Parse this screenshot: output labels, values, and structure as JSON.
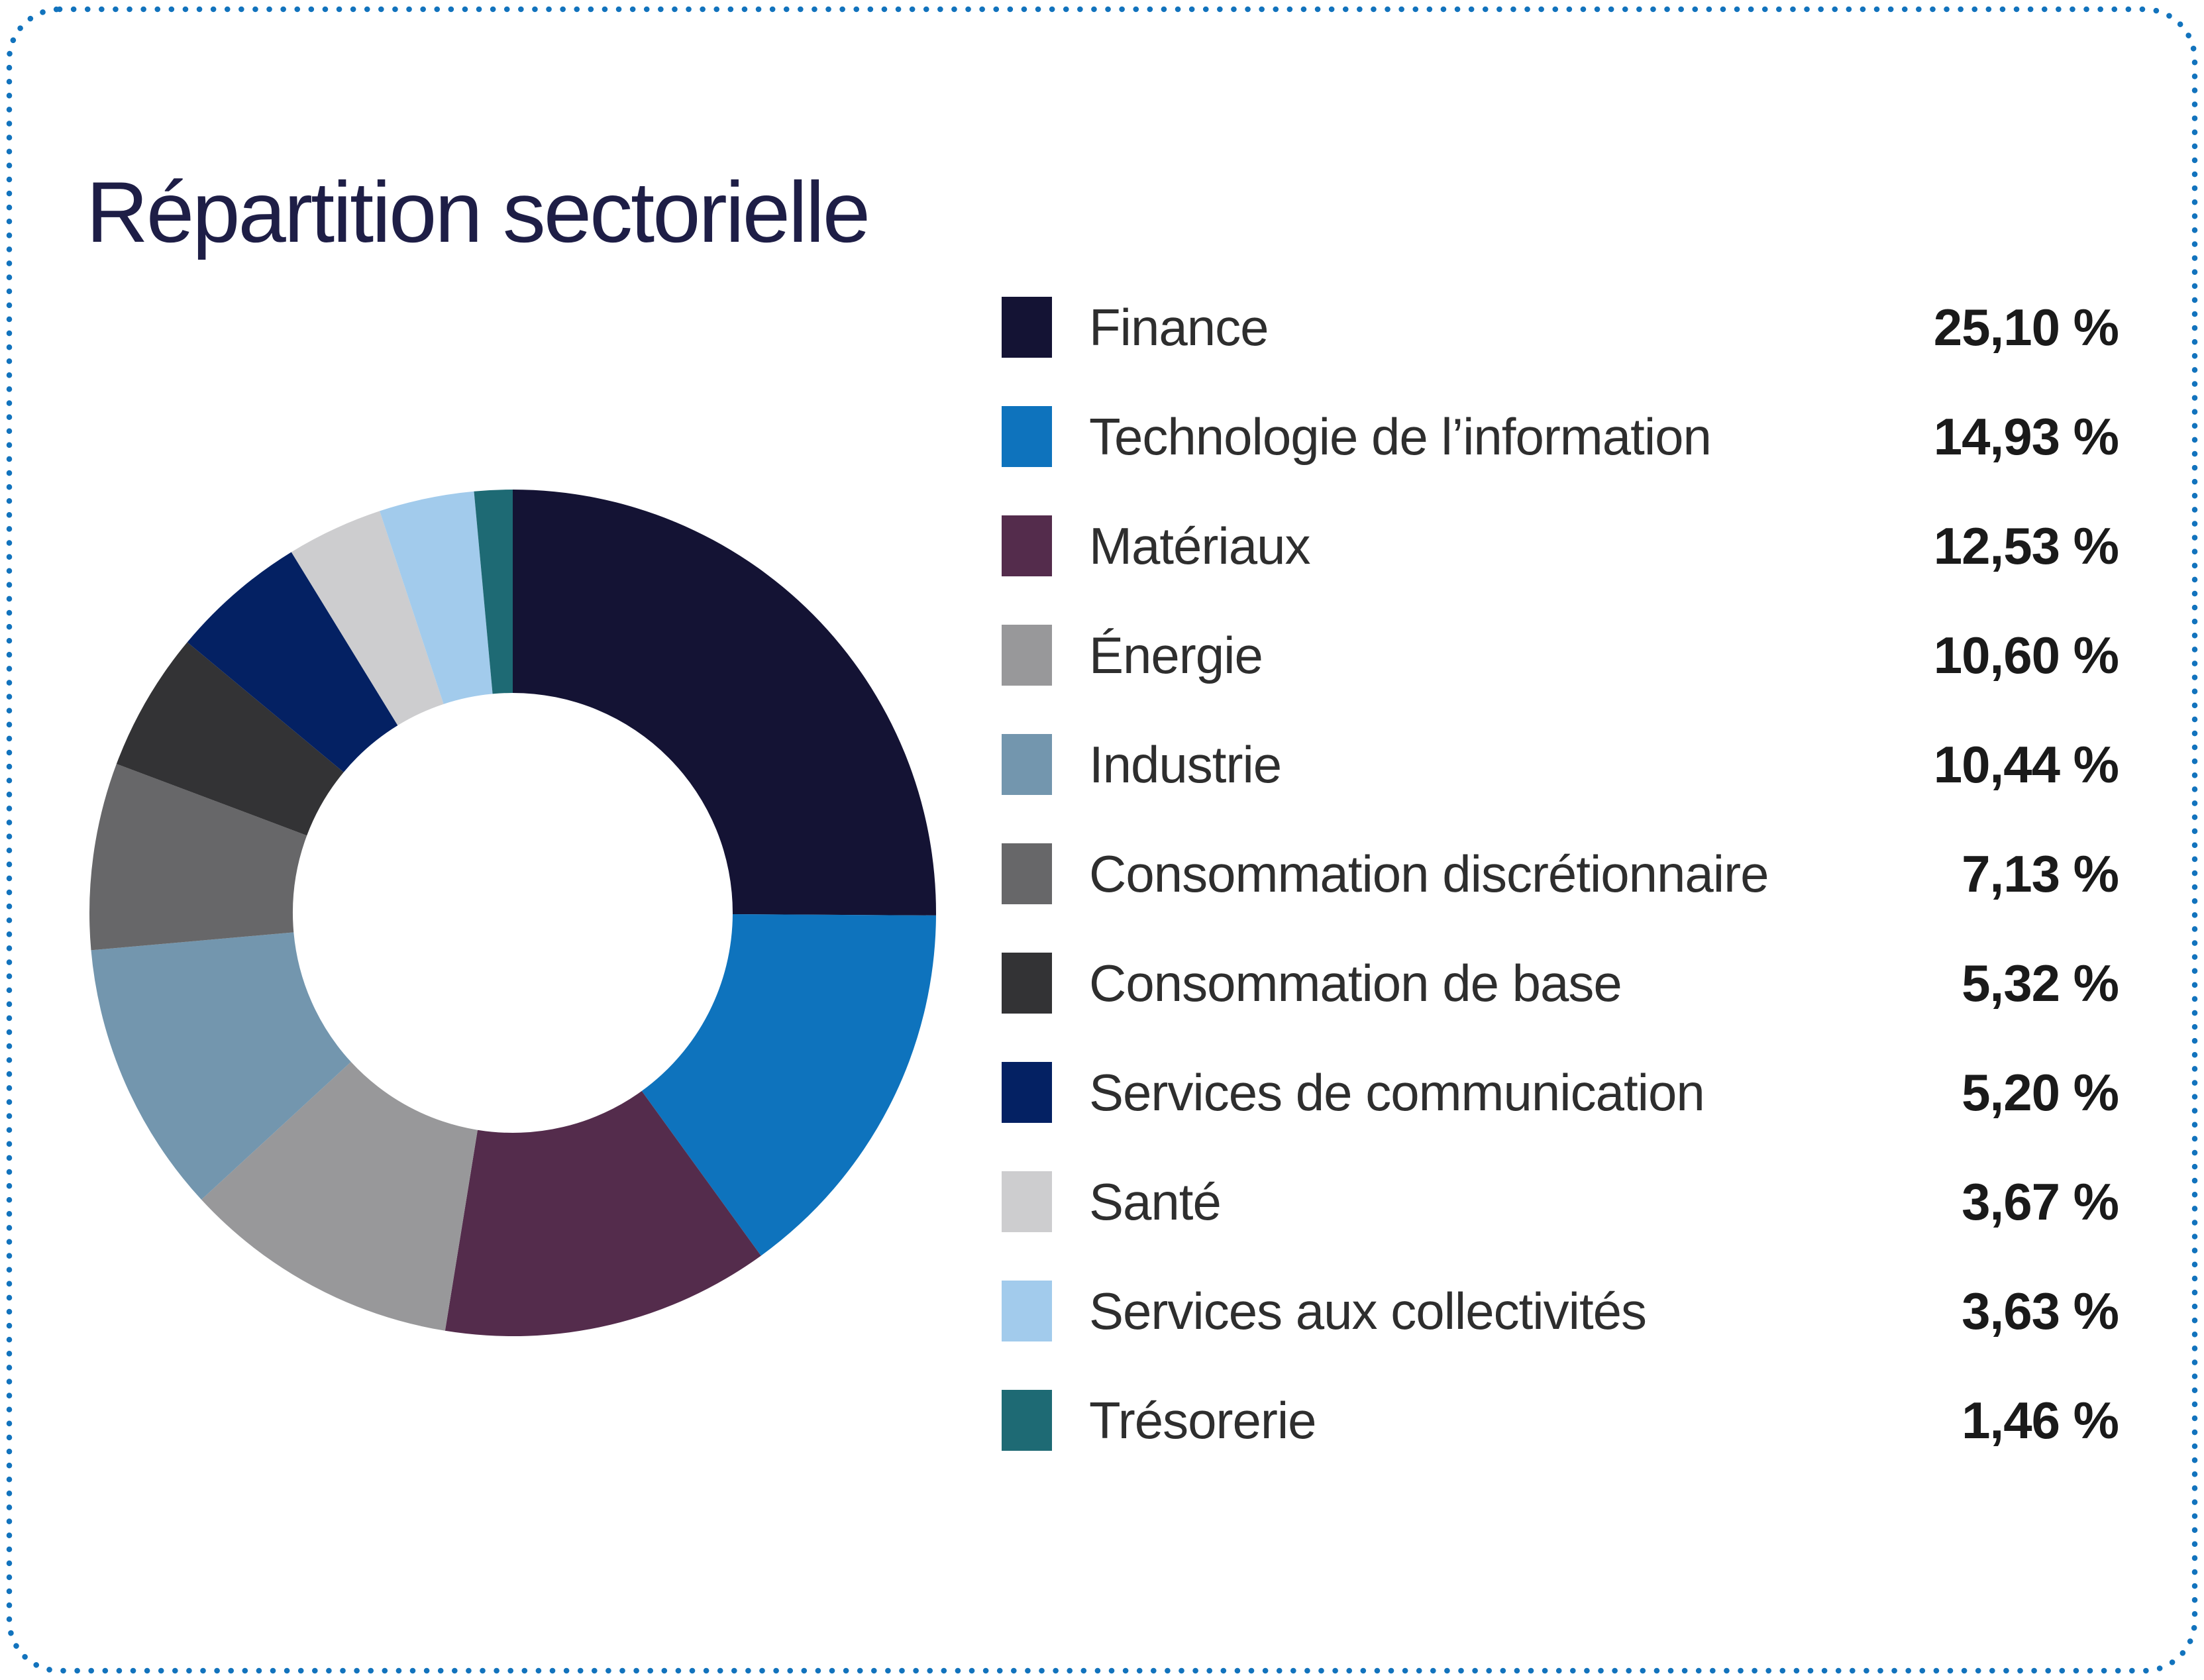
{
  "page": {
    "title": "Répartition sectorielle",
    "title_color": "#1e1e46",
    "background_color": "#ffffff",
    "border_color": "#1273bd",
    "label_color": "#2e2e2e",
    "value_color": "#1a1a1a"
  },
  "chart_data": {
    "type": "pie",
    "donut": true,
    "title": "Répartition sectorielle",
    "legend_position": "right",
    "start_angle_deg": -90,
    "direction": "clockwise",
    "inner_radius_ratio": 0.52,
    "categories": [
      "Finance",
      "Technologie de l’information",
      "Matériaux",
      "Énergie",
      "Industrie",
      "Consommation discrétionnaire",
      "Consommation de base",
      "Services de communication",
      "Santé",
      "Services aux collectivités",
      "Trésorerie"
    ],
    "values": [
      25.1,
      14.93,
      12.53,
      10.6,
      10.44,
      7.13,
      5.32,
      5.2,
      3.67,
      3.63,
      1.46
    ],
    "items": [
      {
        "label": "Finance",
        "value": 25.1,
        "value_display": "25,10 %",
        "color": "#141334"
      },
      {
        "label": "Technologie de l’information",
        "value": 14.93,
        "value_display": "14,93 %",
        "color": "#0e73bd"
      },
      {
        "label": "Matériaux",
        "value": 12.53,
        "value_display": "12,53 %",
        "color": "#542c4c"
      },
      {
        "label": "Énergie",
        "value": 10.6,
        "value_display": "10,60 %",
        "color": "#98989a"
      },
      {
        "label": "Industrie",
        "value": 10.44,
        "value_display": "10,44 %",
        "color": "#7396ae"
      },
      {
        "label": "Consommation discrétionnaire",
        "value": 7.13,
        "value_display": "7,13 %",
        "color": "#676769"
      },
      {
        "label": "Consommation de base",
        "value": 5.32,
        "value_display": "5,32 %",
        "color": "#333335"
      },
      {
        "label": "Services de communication",
        "value": 5.2,
        "value_display": "5,20 %",
        "color": "#042163"
      },
      {
        "label": "Santé",
        "value": 3.67,
        "value_display": "3,67 %",
        "color": "#cdcdcf"
      },
      {
        "label": "Services aux collectivités",
        "value": 3.63,
        "value_display": "3,63 %",
        "color": "#a2cbec"
      },
      {
        "label": "Trésorerie",
        "value": 1.46,
        "value_display": "1,46 %",
        "color": "#1e6a74"
      }
    ]
  }
}
